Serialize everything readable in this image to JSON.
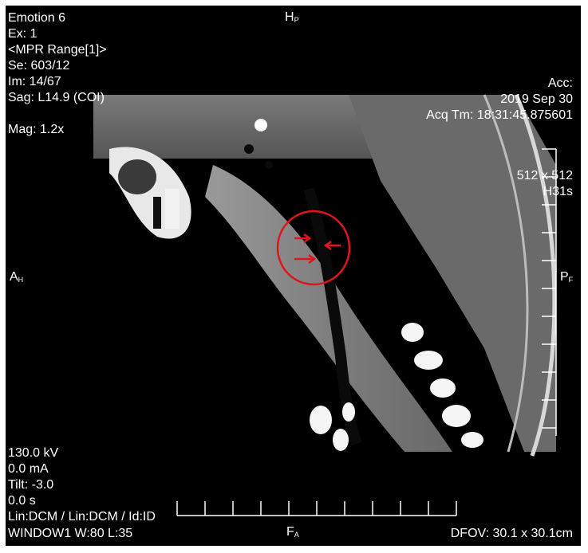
{
  "overlay": {
    "top_left": [
      "Emotion 6",
      "Ex: 1",
      "<MPR Range[1]>",
      "Se: 603/12",
      "Im: 14/67",
      "Sag: L14.9 (COI)",
      "",
      "Mag: 1.2x"
    ],
    "top_right_acc": "Acc:",
    "top_right_date": "2019 Sep 30",
    "top_right_time": "Acq Tm: 18:31:45.875601",
    "matrix": "512 x 512",
    "kernel": "H31s",
    "bottom_left": [
      "130.0 kV",
      "0.0 mA",
      "Tilt: -3.0",
      "0.0 s",
      "Lin:DCM / Lin:DCM / Id:ID"
    ],
    "window": "WINDOW1 W:80  L:35",
    "dfov": "DFOV: 30.1 x 30.1cm"
  },
  "orientation": {
    "top": {
      "main": "H",
      "sub": "P"
    },
    "left": {
      "main": "A",
      "sub": "H"
    },
    "right": {
      "main": "P",
      "sub": "F"
    },
    "bottom": {
      "main": "F",
      "sub": "A"
    }
  },
  "colors": {
    "annotation": "#e0141e",
    "overlay_text": "#ffffff",
    "background": "#000000"
  }
}
